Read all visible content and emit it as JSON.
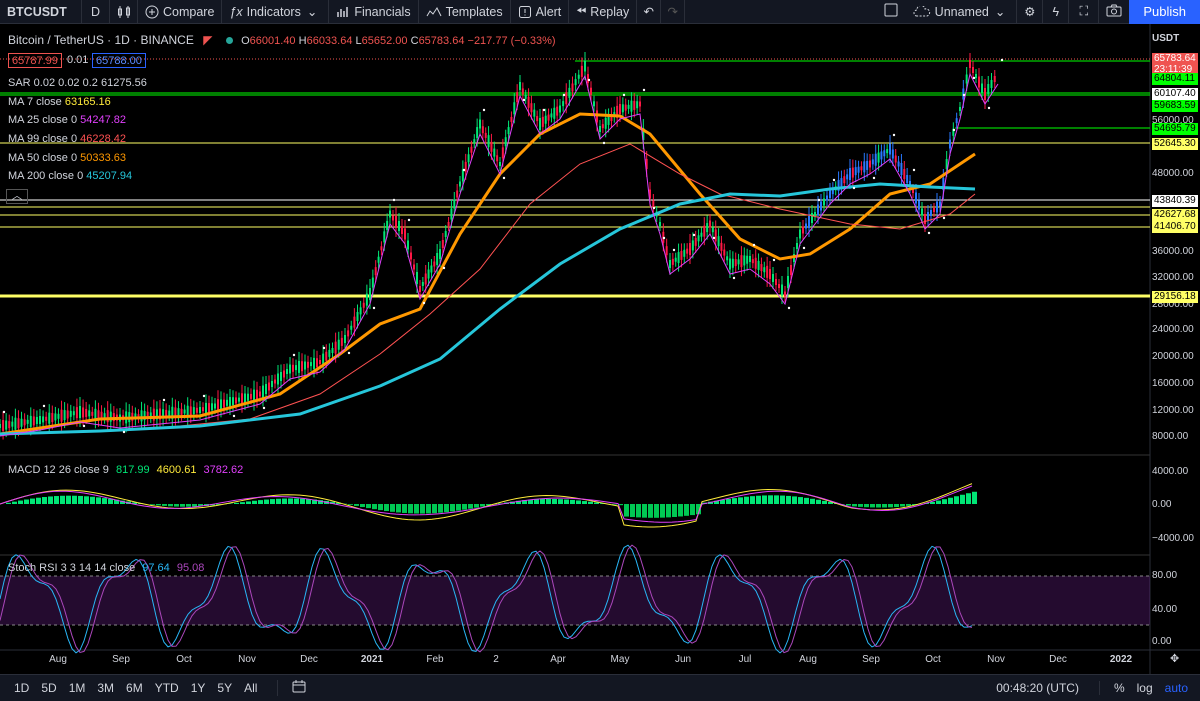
{
  "toolbar": {
    "symbol": "BTCUSDT",
    "interval": "D",
    "compare": "Compare",
    "indicators": "Indicators",
    "financials": "Financials",
    "templates": "Templates",
    "alert": "Alert",
    "replay": "Replay",
    "layout_name": "Unnamed",
    "publish": "Publish"
  },
  "legend": {
    "title": "Bitcoin / TetherUS · 1D · BINANCE",
    "open_label": "O",
    "open": "66001.40",
    "high_label": "H",
    "high": "66033.64",
    "low_label": "L",
    "low": "65652.00",
    "close_label": "C",
    "close": "65783.64",
    "change": "−217.77 (−0.33%)",
    "bid": "65787.99",
    "spread": "0.01",
    "ask": "65788.00",
    "sar": "SAR 0.02 0.02 0.2",
    "sar_val": "61275.56",
    "ma7": "MA 7 close",
    "ma7_val": "63165.16",
    "ma25": "MA 25 close 0",
    "ma25_val": "54247.82",
    "ma99": "MA 99 close 0",
    "ma99_val": "46228.42",
    "ma50": "MA 50 close 0",
    "ma50_val": "50333.63",
    "ma200": "MA 200 close 0",
    "ma200_val": "45207.94",
    "macd": "MACD 12 26 close 9",
    "macd_v1": "817.99",
    "macd_v2": "4600.61",
    "macd_v3": "3782.62",
    "stoch": "Stoch RSI 3 3 14 14 close",
    "stoch_v1": "97.64",
    "stoch_v2": "95.08"
  },
  "price_axis": {
    "currency": "USDT",
    "labels": [
      "56000.00",
      "48000.00",
      "36000.00",
      "32000.00",
      "28000.00",
      "24000.00",
      "20000.00",
      "16000.00",
      "12000.00",
      "8000.00"
    ],
    "tags": [
      {
        "text": "65783.64",
        "bg": "#ef5350",
        "fg": "#ffffff"
      },
      {
        "text": "23:11:39",
        "bg": "#ef5350",
        "fg": "#ffffff"
      },
      {
        "text": "64804.11",
        "bg": "#00ff00",
        "fg": "#000000"
      },
      {
        "text": "60107.40",
        "bg": "#ffffff",
        "fg": "#000000"
      },
      {
        "text": "59683.59",
        "bg": "#00ff00",
        "fg": "#000000"
      },
      {
        "text": "54695.79",
        "bg": "#00ff00",
        "fg": "#000000"
      },
      {
        "text": "52645.30",
        "bg": "#ffff66",
        "fg": "#000000"
      },
      {
        "text": "43840.39",
        "bg": "#ffffff",
        "fg": "#000000"
      },
      {
        "text": "42627.68",
        "bg": "#ffff66",
        "fg": "#000000"
      },
      {
        "text": "41406.70",
        "bg": "#ffff66",
        "fg": "#000000"
      },
      {
        "text": "29156.18",
        "bg": "#ffff66",
        "fg": "#000000"
      }
    ],
    "macd_labels": [
      "4000.00",
      "0.00",
      "−4000.00"
    ],
    "stoch_labels": [
      "80.00",
      "40.00",
      "0.00"
    ]
  },
  "time_axis": [
    "Aug",
    "Sep",
    "Oct",
    "Nov",
    "Dec",
    "2021",
    "Feb",
    "2",
    "Apr",
    "May",
    "Jun",
    "Jul",
    "Aug",
    "Sep",
    "Oct",
    "Nov",
    "Dec",
    "2022"
  ],
  "bottom": {
    "ranges": [
      "1D",
      "5D",
      "1M",
      "3M",
      "6M",
      "YTD",
      "1Y",
      "5Y",
      "All"
    ],
    "clock": "00:48:20 (UTC)",
    "pct": "%",
    "log": "log",
    "auto": "auto"
  },
  "colors": {
    "accent": "#2962ff",
    "ma7": "#ffeb3b",
    "ma25": "#e040fb",
    "ma99": "#ff5252",
    "ma50": "#ff9800",
    "ma200": "#26c6da"
  }
}
